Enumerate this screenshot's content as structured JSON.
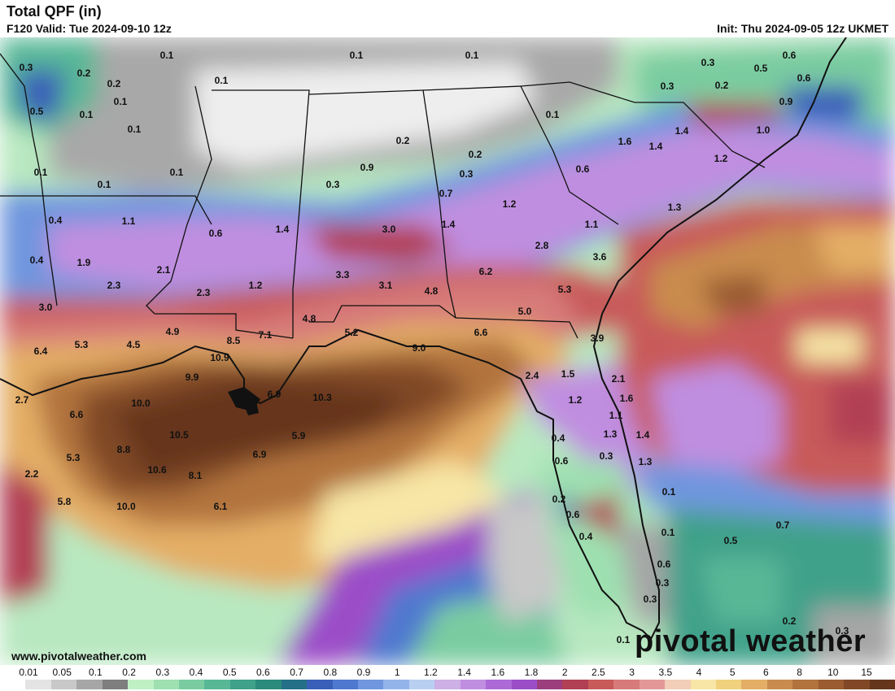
{
  "header": {
    "title": "Total QPF (in)",
    "valid": "F120 Valid: Tue 2024-09-10 12z",
    "init": "Init: Thu 2024-09-05 12z UKMET"
  },
  "footer": {
    "website": "www.pivotalweather.com",
    "brand": "pivotal weather"
  },
  "legend": {
    "labels": [
      "0.01",
      "0.05",
      "0.1",
      "0.2",
      "0.3",
      "0.4",
      "0.5",
      "0.6",
      "0.7",
      "0.8",
      "0.9",
      "1",
      "1.2",
      "1.4",
      "1.6",
      "1.8",
      "2",
      "2.5",
      "3",
      "3.5",
      "4",
      "5",
      "6",
      "8",
      "10",
      "15"
    ],
    "colors": [
      "#ffffff",
      "#e4e4e4",
      "#c8c8c8",
      "#a6a6a6",
      "#7e7e7e",
      "#bff0c4",
      "#9ee0b0",
      "#7acca0",
      "#58b896",
      "#3fa18a",
      "#2a8a7c",
      "#256f88",
      "#3a5fb8",
      "#4f79cf",
      "#6f96de",
      "#93b4ea",
      "#b9cff2",
      "#cdb0e6",
      "#c08ee0",
      "#ad6ad6",
      "#9b4dc8",
      "#9c3d7e",
      "#b24054",
      "#c85a5a",
      "#d77a7a",
      "#e39898",
      "#f2cdb8",
      "#f7e6a6",
      "#f0d27e",
      "#e4ae66",
      "#c98c4e",
      "#b2733e",
      "#9a5c30",
      "#804826",
      "#66361c"
    ]
  },
  "map_values": [
    "0.3",
    "0.2",
    "0.1",
    "0.2",
    "0.1",
    "0.5",
    "0.1",
    "0.1",
    "0.1",
    "0.1",
    "0.1",
    "0.1",
    "0.1",
    "0.1",
    "0.3",
    "0.6",
    "0.5",
    "0.3",
    "0.2",
    "0.6",
    "0.9",
    "1.0",
    "1.4",
    "1.6",
    "1.4",
    "1.2",
    "0.1",
    "0.2",
    "0.2",
    "0.3",
    "0.9",
    "0.3",
    "0.7",
    "1.2",
    "0.6",
    "1.3",
    "1.1",
    "1.4",
    "3.0",
    "1.4",
    "0.6",
    "1.1",
    "0.4",
    "0.4",
    "1.9",
    "2.3",
    "2.1",
    "2.3",
    "1.2",
    "3.3",
    "3.1",
    "4.8",
    "2.8",
    "6.2",
    "3.6",
    "5.3",
    "5.0",
    "3.0",
    "6.4",
    "5.3",
    "4.5",
    "4.9",
    "7.1",
    "8.5",
    "4.8",
    "5.2",
    "9.0",
    "6.6",
    "3.9",
    "10.9",
    "9.9",
    "6.9",
    "10.3",
    "2.4",
    "1.5",
    "2.1",
    "1.6",
    "1.2",
    "2.7",
    "6.6",
    "10.0",
    "10.5",
    "5.9",
    "1.1",
    "1.3",
    "1.4",
    "0.4",
    "5.3",
    "8.8",
    "10.6",
    "8.1",
    "6.9",
    "0.3",
    "1.3",
    "2.2",
    "5.8",
    "10.0",
    "6.1",
    "0.6",
    "0.2",
    "0.6",
    "0.4",
    "0.1",
    "0.7",
    "0.5",
    "0.1",
    "0.6",
    "0.3",
    "0.3",
    "0.2",
    "0.3",
    "0.1"
  ]
}
